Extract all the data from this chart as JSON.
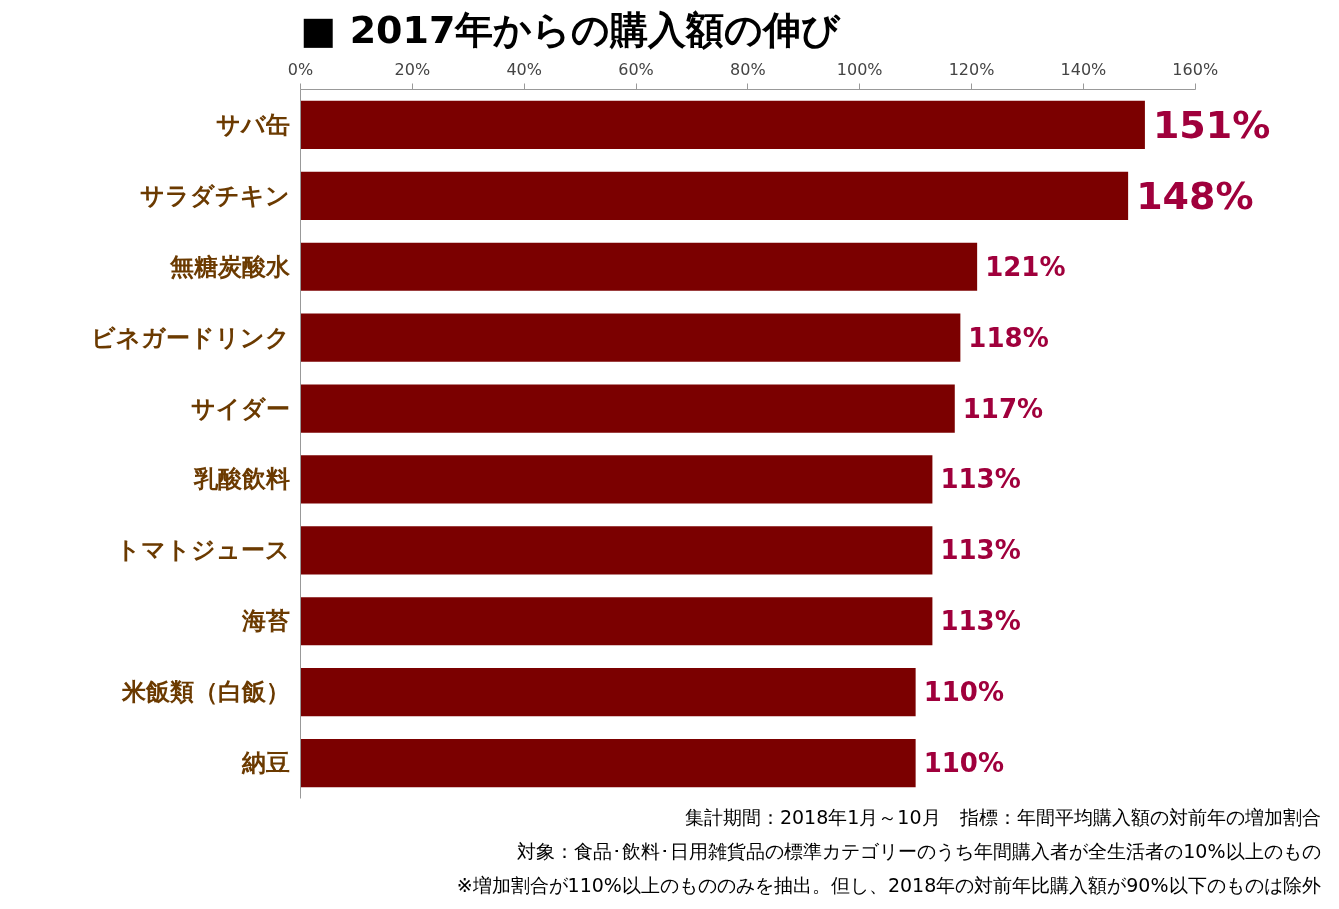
{
  "chart_data": {
    "type": "bar",
    "orientation": "horizontal",
    "title": "■ 2017年からの購入額の伸び",
    "categories": [
      "サバ缶",
      "サラダチキン",
      "無糖炭酸水",
      "ビネガードリンク",
      "サイダー",
      "乳酸飲料",
      "トマトジュース",
      "海苔",
      "米飯類（白飯）",
      "納豆"
    ],
    "values": [
      151,
      148,
      121,
      118,
      117,
      113,
      113,
      113,
      110,
      110
    ],
    "value_labels": [
      "151%",
      "148%",
      "121%",
      "118%",
      "117%",
      "113%",
      "113%",
      "113%",
      "110%",
      "110%"
    ],
    "color": "#7b0000",
    "xlim": [
      0,
      160
    ],
    "xticks": [
      {
        "value": 0,
        "label": "0%"
      },
      {
        "value": 20,
        "label": "20%"
      },
      {
        "value": 40,
        "label": "40%"
      },
      {
        "value": 60,
        "label": "60%"
      },
      {
        "value": 80,
        "label": "80%"
      },
      {
        "value": 100,
        "label": "100%"
      },
      {
        "value": 120,
        "label": "120%"
      },
      {
        "value": 140,
        "label": "140%"
      },
      {
        "value": 160,
        "label": "160%"
      }
    ],
    "grid": false,
    "annotations": [
      "集計期間：2018年1月～10月　指標：年間平均購入額の対前年の増加割合",
      "対象：食品･飲料･日用雑貨品の標準カテゴリーのうち年間購入者が全生活者の10%以上のもの",
      "※増加割合が110%以上のもののみを抽出。但し、2018年の対前年比購入額が90%以下のものは除外"
    ]
  }
}
